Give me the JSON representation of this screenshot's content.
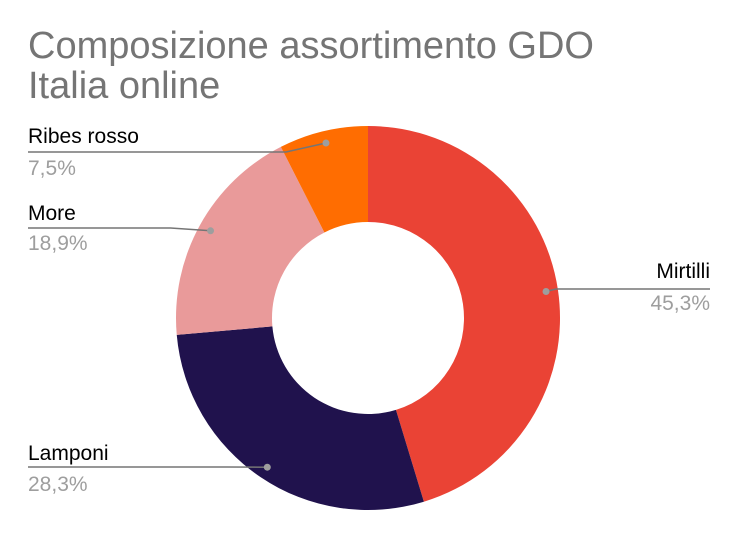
{
  "chart_data": {
    "type": "pie",
    "donut": true,
    "title_lines": [
      "Composizione assortimento GDO",
      "Italia online"
    ],
    "legend": "none",
    "slices": [
      {
        "label": "Mirtilli",
        "value": 45.3,
        "value_label": "45,3%",
        "color": "#ea4335"
      },
      {
        "label": "Lamponi",
        "value": 28.3,
        "value_label": "28,3%",
        "color": "#20124d"
      },
      {
        "label": "More",
        "value": 18.9,
        "value_label": "18,9%",
        "color": "#e99a9a"
      },
      {
        "label": "Ribes rosso",
        "value": 7.5,
        "value_label": "7,5%",
        "color": "#ff6d01"
      }
    ]
  }
}
